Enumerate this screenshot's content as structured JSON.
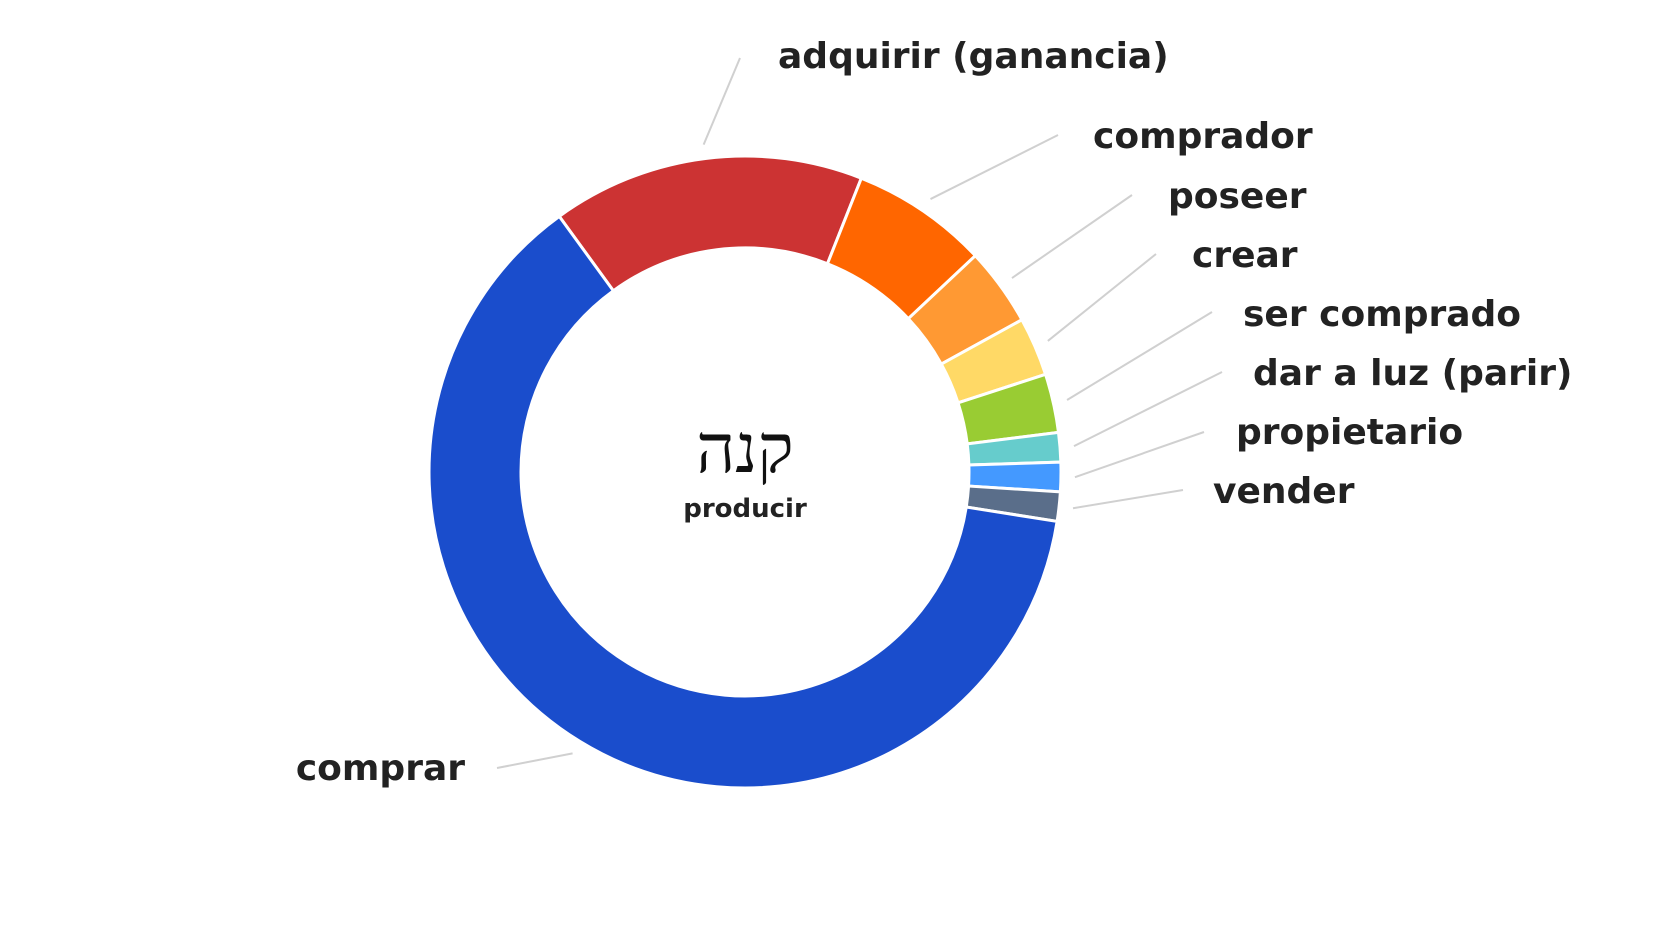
{
  "chart_data": {
    "type": "pie",
    "donut": true,
    "center": {
      "title": "קנה",
      "subtitle": "producir"
    },
    "slices": [
      {
        "label": "adquirir (ganancia)",
        "value": 16,
        "color": "#cc3333"
      },
      {
        "label": "comprador",
        "value": 7,
        "color": "#ff6600"
      },
      {
        "label": "poseer",
        "value": 4,
        "color": "#ff9933"
      },
      {
        "label": "crear",
        "value": 3,
        "color": "#ffd966"
      },
      {
        "label": "ser comprado",
        "value": 3,
        "color": "#99cc33"
      },
      {
        "label": "dar a luz (parir)",
        "value": 1.5,
        "color": "#66cccc"
      },
      {
        "label": "propietario",
        "value": 1.5,
        "color": "#4499ff"
      },
      {
        "label": "vender",
        "value": 1.5,
        "color": "#5a6e8a"
      },
      {
        "label": "comprar",
        "value": 62.5,
        "color": "#1a4dcc"
      }
    ]
  }
}
